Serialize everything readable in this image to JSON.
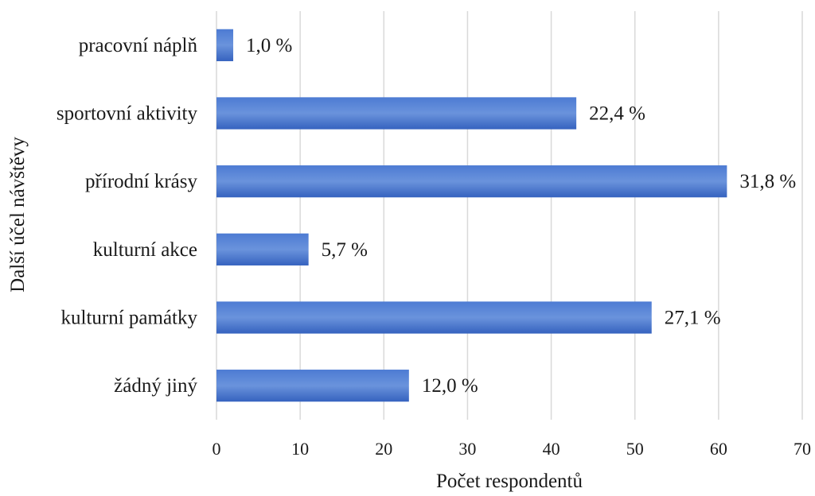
{
  "chart_data": {
    "type": "bar",
    "orientation": "horizontal",
    "title": "",
    "xlabel": "Počet respondentů",
    "ylabel": "Další účel návštěvy",
    "xlim": [
      0,
      70
    ],
    "x_ticks": [
      "0",
      "10",
      "20",
      "30",
      "40",
      "50",
      "60",
      "70"
    ],
    "grid": "vertical",
    "legend": "none",
    "categories": [
      "pracovní náplň",
      "sportovní aktivity",
      "přírodní krásy",
      "kulturní akce",
      "kulturní památky",
      "žádný jiný"
    ],
    "values": [
      2,
      43,
      61,
      11,
      52,
      23
    ],
    "data_labels": [
      "1,0 %",
      "22,4 %",
      "31,8 %",
      "5,7 %",
      "27,1 %",
      "12,0 %"
    ],
    "colors": {
      "bar_light": "#5a86d6",
      "bar_dark": "#3d6cc6",
      "grid": "#d9d9d9"
    }
  }
}
